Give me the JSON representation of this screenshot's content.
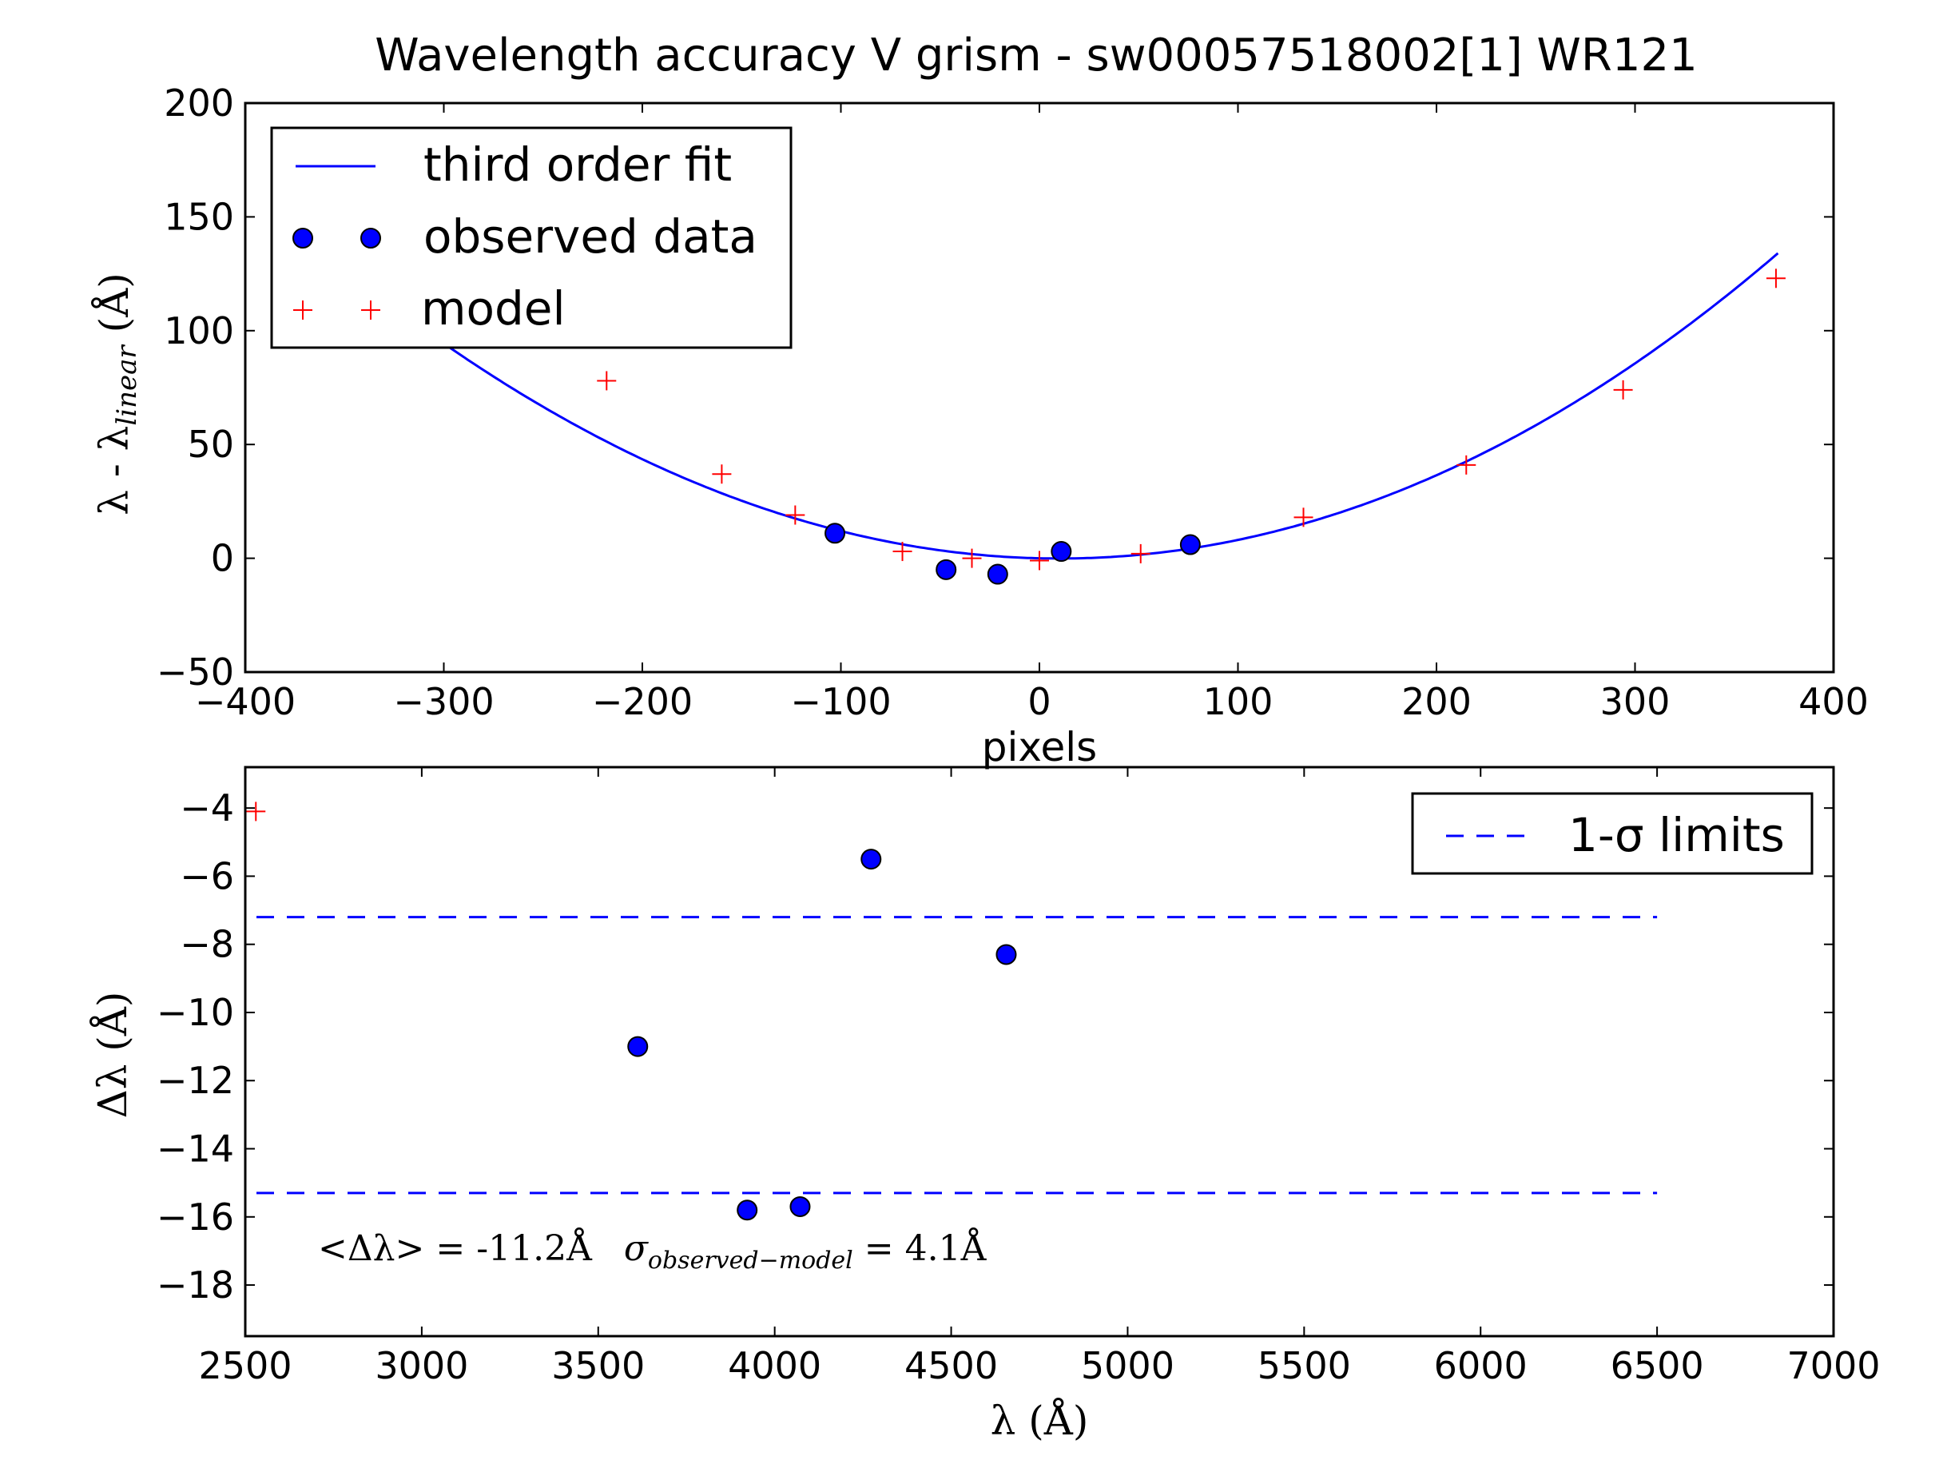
{
  "chart_data": [
    {
      "type": "line",
      "title": "Wavelength accuracy V grism - sw00057518002[1] WR121",
      "xlabel": "pixels",
      "ylabel": "λ - λ",
      "ylabel_sub": "linear",
      "ylabel_unit": "(Å)",
      "xlim": [
        -400,
        400
      ],
      "ylim": [
        -50,
        200
      ],
      "xticks": [
        -400,
        -300,
        -200,
        -100,
        0,
        100,
        200,
        300,
        400
      ],
      "yticks": [
        -50,
        0,
        50,
        100,
        150,
        200
      ],
      "xtick_labels": [
        "−400",
        "−300",
        "−200",
        "−100",
        "0",
        "100",
        "200",
        "300",
        "400"
      ],
      "ytick_labels": [
        "−50",
        "0",
        "50",
        "100",
        "150",
        "200"
      ],
      "grid": false,
      "legend_position": "top-left",
      "series": [
        {
          "name": "third order fit",
          "kind": "line",
          "color": "#0000ff",
          "coefficients": [
            0,
            -0.02,
            0.001,
            6e-08
          ],
          "x_range": [
            -316,
            372
          ]
        },
        {
          "name": "observed data",
          "kind": "marker-circle",
          "color": "#0000ff",
          "x": [
            -103,
            -47,
            -21,
            11,
            76
          ],
          "y": [
            11,
            -5,
            -7,
            3,
            6
          ]
        },
        {
          "name": "model",
          "kind": "marker-plus",
          "color": "#ff0000",
          "x": [
            -218,
            -160,
            -123,
            -69,
            -34,
            0,
            51,
            133,
            215,
            294,
            371
          ],
          "y": [
            78,
            37,
            19,
            3,
            0,
            -1,
            2,
            18,
            41,
            74,
            123
          ]
        }
      ]
    },
    {
      "type": "scatter",
      "title": "",
      "xlabel": "λ (Å)",
      "ylabel": "Δλ (Å)",
      "xlim": [
        2500,
        7000
      ],
      "ylim": [
        -19.5,
        -2.8
      ],
      "xticks": [
        2500,
        3000,
        3500,
        4000,
        4500,
        5000,
        5500,
        6000,
        6500,
        7000
      ],
      "yticks": [
        -4,
        -6,
        -8,
        -10,
        -12,
        -14,
        -16,
        -18
      ],
      "xtick_labels": [
        "2500",
        "3000",
        "3500",
        "4000",
        "4500",
        "5000",
        "5500",
        "6000",
        "6500",
        "7000"
      ],
      "ytick_labels": [
        "−4",
        "−6",
        "−8",
        "−10",
        "−12",
        "−14",
        "−16",
        "−18"
      ],
      "grid": false,
      "legend_position": "top-right",
      "series": [
        {
          "name": "",
          "kind": "marker-circle",
          "color": "#0000ff",
          "x": [
            3612,
            3922,
            4072,
            4273,
            4656
          ],
          "y": [
            -11.0,
            -15.8,
            -15.7,
            -5.5,
            -8.3
          ]
        },
        {
          "name": "",
          "kind": "marker-plus",
          "color": "#ff0000",
          "x": [
            2530
          ],
          "y": [
            -4.1
          ]
        },
        {
          "name": "1-σ limits",
          "kind": "dashed-hline",
          "color": "#0000ff",
          "y": [
            -7.2,
            -15.3
          ],
          "x_range": [
            2500,
            6500
          ]
        }
      ],
      "annotation": {
        "mean_text": "<Δλ> = -11.2Å",
        "sigma_symbol": "σ",
        "sigma_sub": "observed−model",
        "sigma_value_text": "= 4.1Å"
      }
    }
  ]
}
